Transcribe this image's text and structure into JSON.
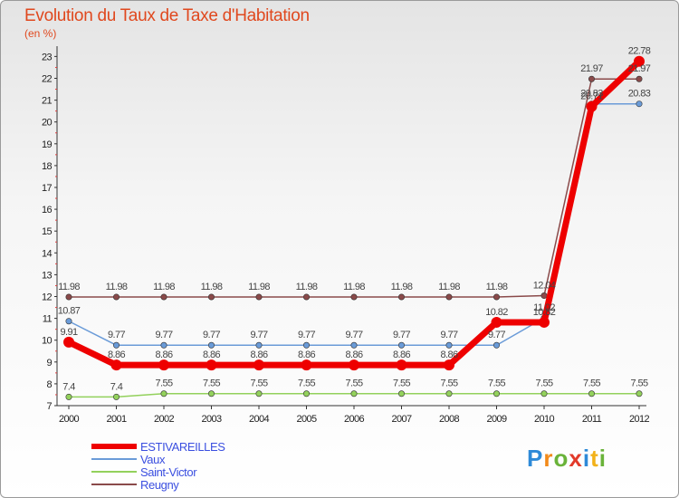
{
  "title": "Evolution du Taux de Taxe d'Habitation",
  "subtitle": "(en %)",
  "logo": "Proxiti",
  "chart_data": {
    "type": "line",
    "x": [
      "2000",
      "2001",
      "2002",
      "2003",
      "2004",
      "2005",
      "2006",
      "2007",
      "2008",
      "2009",
      "2010",
      "2011",
      "2012"
    ],
    "ylim": [
      7,
      23
    ],
    "yticks": [
      7,
      8,
      9,
      10,
      11,
      12,
      13,
      14,
      15,
      16,
      17,
      18,
      19,
      20,
      21,
      22,
      23
    ],
    "grid": false,
    "legend": "bottom-left",
    "series": [
      {
        "name": "Vaux",
        "color": "#6a9bd8",
        "values": [
          10.87,
          9.77,
          9.77,
          9.77,
          9.77,
          9.77,
          9.77,
          9.77,
          9.77,
          9.77,
          11.02,
          20.83,
          20.83
        ],
        "labels": [
          "10.87",
          "9.77",
          "9.77",
          "9.77",
          "9.77",
          "9.77",
          "9.77",
          "9.77",
          "9.77",
          "9.77",
          "11.02",
          "20.83",
          "20.83"
        ]
      },
      {
        "name": "Saint-Victor",
        "color": "#93d15c",
        "values": [
          7.4,
          7.4,
          7.55,
          7.55,
          7.55,
          7.55,
          7.55,
          7.55,
          7.55,
          7.55,
          7.55,
          7.55,
          7.55
        ],
        "labels": [
          "7.4",
          "7.4",
          "7.55",
          "7.55",
          "7.55",
          "7.55",
          "7.55",
          "7.55",
          "7.55",
          "7.55",
          "7.55",
          "7.55",
          "7.55"
        ]
      },
      {
        "name": "Reugny",
        "color": "#8a4a4a",
        "values": [
          11.98,
          11.98,
          11.98,
          11.98,
          11.98,
          11.98,
          11.98,
          11.98,
          11.98,
          11.98,
          12.04,
          21.97,
          21.97
        ],
        "labels": [
          "11.98",
          "11.98",
          "11.98",
          "11.98",
          "11.98",
          "11.98",
          "11.98",
          "11.98",
          "11.98",
          "11.98",
          "12.04",
          "21.97",
          "21.97"
        ]
      },
      {
        "name": "ESTIVAREILLES",
        "color": "#ee0000",
        "values": [
          9.91,
          8.86,
          8.86,
          8.86,
          8.86,
          8.86,
          8.86,
          8.86,
          8.86,
          10.82,
          10.82,
          20.71,
          22.78
        ],
        "labels": [
          "9.91",
          "8.86",
          "8.86",
          "8.86",
          "8.86",
          "8.86",
          "8.86",
          "8.86",
          "8.86",
          "10.82",
          "10.82",
          "20.71",
          "22.78"
        ]
      }
    ],
    "legend_order": [
      "ESTIVAREILLES",
      "Vaux",
      "Saint-Victor",
      "Reugny"
    ]
  }
}
